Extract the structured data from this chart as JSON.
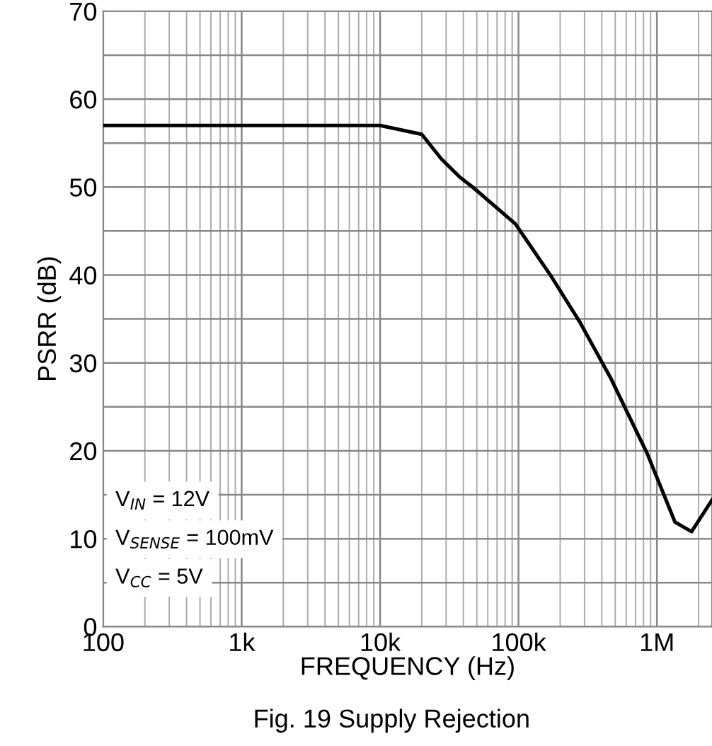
{
  "chart_data": {
    "type": "line",
    "xlabel": "FREQUENCY (Hz)",
    "ylabel": "PSRR (dB)",
    "annotations": [
      "V$_{IN}$ = 12V",
      "V$_{SENSE}$ = 100mV",
      "V$_{CC}$ = 5V",
      "Fig. 19 Supply Rejection"
    ],
    "log": "x",
    "grid": true,
    "marker": "none",
    "line_style": "solid",
    "xlim": [
      100,
      2500000
    ],
    "xticks": [
      {
        "value": 100,
        "label": "100"
      },
      {
        "value": 1000,
        "label": "1k"
      },
      {
        "value": 10000,
        "label": "10k"
      },
      {
        "value": 100000,
        "label": "100k"
      },
      {
        "value": 1000000,
        "label": "1M"
      }
    ],
    "ylim": [
      0,
      70
    ],
    "yticks": [
      0,
      {
        "value": 5,
        "label": null
      },
      10,
      {
        "value": 15,
        "label": null
      },
      20,
      {
        "value": 25,
        "label": null
      },
      30,
      {
        "value": 35,
        "label": null
      },
      40,
      {
        "value": 45,
        "label": null
      },
      50,
      {
        "value": 55,
        "label": null
      },
      60,
      {
        "value": 65,
        "label": null
      },
      70
    ],
    "series": [
      {
        "color": "#000000",
        "x": [
          100,
          1000,
          10000,
          20000,
          27700,
          37800,
          46600,
          95000,
          173000,
          276000,
          466000,
          850000,
          1350000,
          1780000,
          2500000
        ],
        "values": [
          57,
          57,
          57,
          56,
          53.2,
          51.1,
          50,
          45.8,
          39.8,
          34.7,
          28.2,
          19.7,
          11.9,
          10.8,
          14.4
        ]
      }
    ]
  }
}
